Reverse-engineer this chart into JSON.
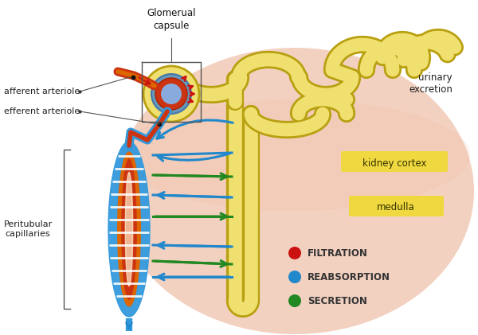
{
  "background_color": "#ffffff",
  "kidney_bg_color": "#e8a585",
  "tubule_fill": "#f0e070",
  "tubule_edge": "#b8a010",
  "tubule_lw_outer": 16,
  "tubule_lw_inner": 12,
  "cap_blue": "#3399dd",
  "cap_red": "#cc3311",
  "cap_orange": "#dd6600",
  "arrow_blue": "#2288cc",
  "arrow_green": "#228822",
  "arrow_red": "#cc1111",
  "cortex_bg": "#f0d840",
  "medulla_bg": "#f0d840",
  "text": {
    "glomerual": "Glomerual\ncapsule",
    "afferent": "afferent arteriole",
    "efferent": "efferent arteriole",
    "peritubular": "Peritubular\ncapillaries",
    "urinary": "urinary\nexcretion",
    "kidney_cortex": "kidney cortex",
    "medulla": "medulla",
    "filtration": "FILTRATION",
    "reabsorption": "REABSORPTION",
    "secretion": "SECRETION"
  },
  "fig_w": 6.0,
  "fig_h": 4.21,
  "dpi": 100
}
